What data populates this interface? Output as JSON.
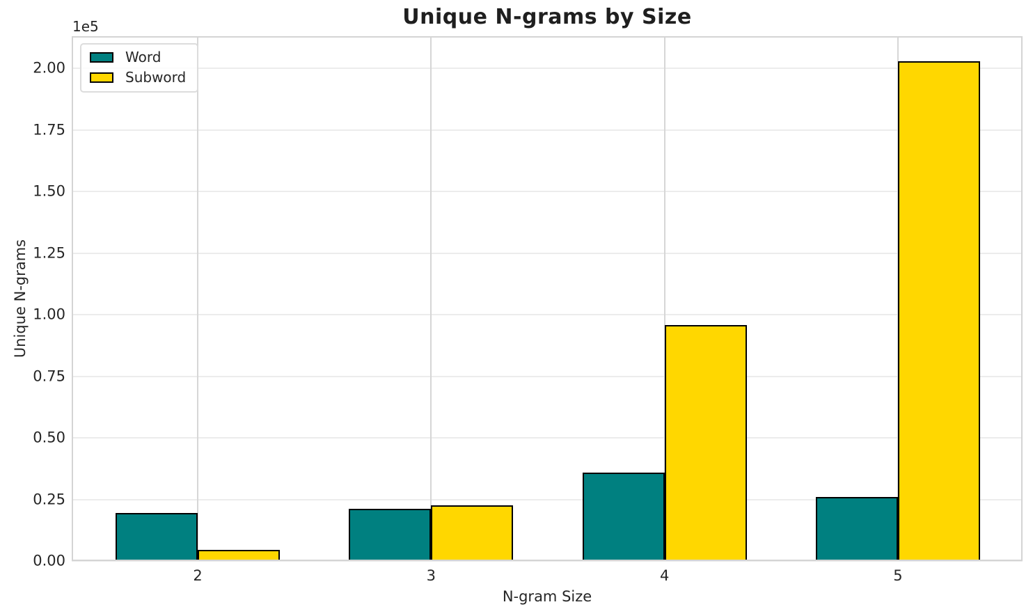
{
  "chart_data": {
    "type": "bar",
    "title": "Unique N-grams by Size",
    "xlabel": "N-gram Size",
    "ylabel": "Unique N-grams",
    "y_offset_label": "1e5",
    "categories": [
      "2",
      "3",
      "4",
      "5"
    ],
    "x_tick_values": [
      2,
      3,
      4,
      5
    ],
    "series": [
      {
        "name": "Word",
        "color": "#008080",
        "values": [
          19500,
          21200,
          36000,
          26000
        ]
      },
      {
        "name": "Subword",
        "color": "#FFD700",
        "values": [
          4600,
          22500,
          95800,
          202800
        ]
      }
    ],
    "bar_edge_color": "#000000",
    "bar_width_units": 0.352,
    "y_ticks": [
      0,
      25000,
      50000,
      75000,
      100000,
      125000,
      150000,
      175000,
      200000
    ],
    "y_tick_labels": [
      "0.00",
      "0.25",
      "0.50",
      "0.75",
      "1.00",
      "1.25",
      "1.50",
      "1.75",
      "2.00"
    ],
    "ylim": [
      0,
      213000
    ],
    "xlim": [
      1.46,
      5.534
    ],
    "grid": true,
    "legend_position": "upper left"
  },
  "style": {
    "background": "#ffffff",
    "text_color": "#262626",
    "grid_color_horizontal": "#ececec",
    "grid_color_vertical": "#d6d6d6",
    "axes_edge_color": "#d4d4d4"
  }
}
